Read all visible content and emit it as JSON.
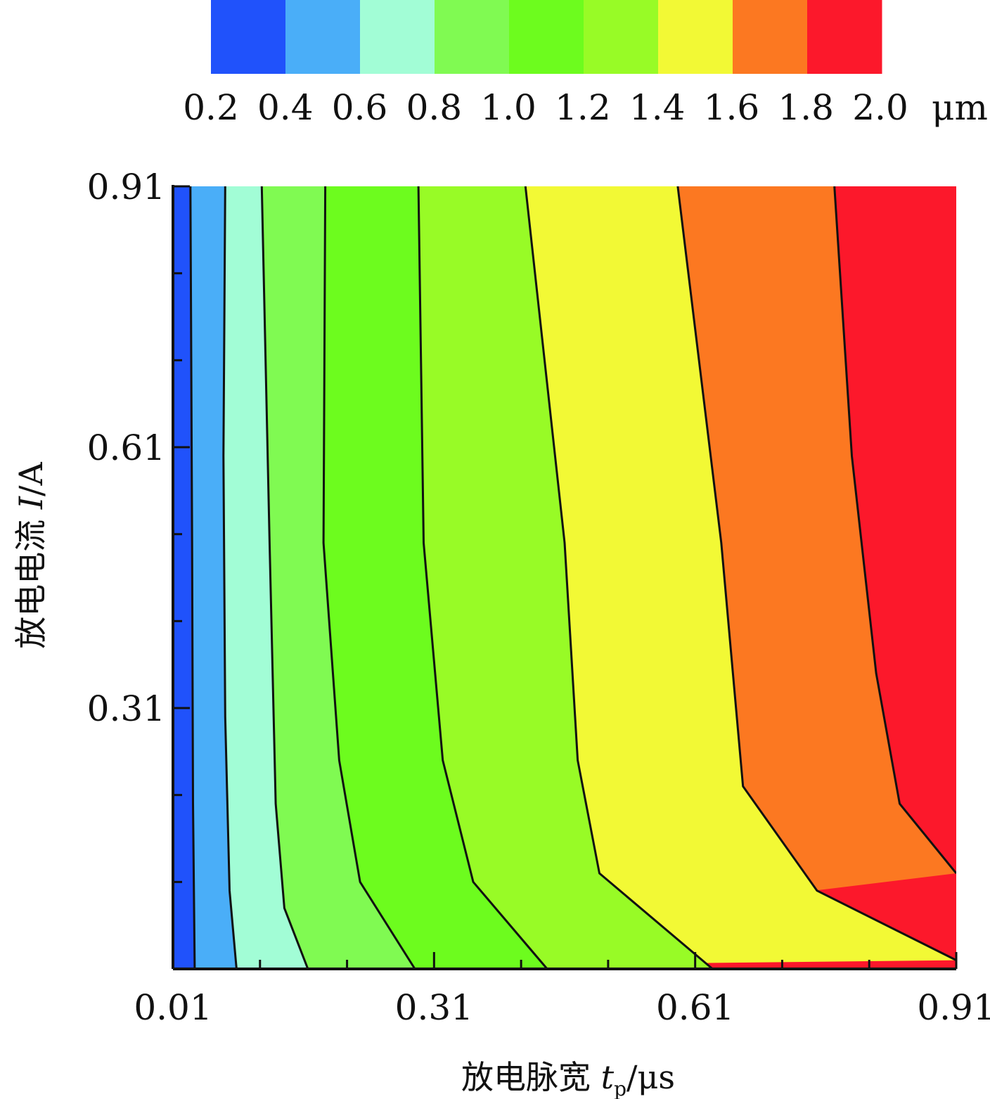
{
  "chart_data": {
    "type": "contour",
    "xlabel_prefix": "放电脉宽 ",
    "xlabel_var": "t",
    "xlabel_sub": "p",
    "xlabel_unit": "/μs",
    "ylabel_prefix": "放电电流 ",
    "ylabel_var": "I",
    "ylabel_unit": "/A",
    "xlim": [
      0.01,
      0.91
    ],
    "ylim": [
      0.01,
      0.91
    ],
    "x_ticks": [
      0.01,
      0.31,
      0.61,
      0.91
    ],
    "x_tick_labels": [
      "0.01",
      "0.31",
      "0.61",
      "0.91"
    ],
    "y_ticks": [
      0.31,
      0.61,
      0.91
    ],
    "y_tick_labels": [
      "0.31",
      "0.61",
      "0.91"
    ],
    "colorbar": {
      "colors": [
        "#2052fb",
        "#4aaef8",
        "#a2fdd6",
        "#80fa52",
        "#6dfc1e",
        "#98fb26",
        "#f2f935",
        "#fc7821",
        "#fc182b"
      ],
      "tick_labels": [
        "0.2",
        "0.4",
        "0.6",
        "0.8",
        "1.0",
        "1.2",
        "1.4",
        "1.6",
        "1.8",
        "2.0"
      ],
      "unit": "μm"
    },
    "contour_levels": [
      {
        "level": 0.2,
        "points": [
          [
            0.035,
            0.01
          ],
          [
            0.033,
            0.2
          ],
          [
            0.032,
            0.5
          ],
          [
            0.03,
            0.91
          ]
        ]
      },
      {
        "level": 0.4,
        "points": [
          [
            0.083,
            0.01
          ],
          [
            0.075,
            0.1
          ],
          [
            0.07,
            0.3
          ],
          [
            0.068,
            0.6
          ],
          [
            0.07,
            0.91
          ]
        ]
      },
      {
        "level": 0.6,
        "points": [
          [
            0.165,
            0.01
          ],
          [
            0.138,
            0.08
          ],
          [
            0.128,
            0.2
          ],
          [
            0.121,
            0.5
          ],
          [
            0.112,
            0.91
          ]
        ]
      },
      {
        "level": 0.8,
        "points": [
          [
            0.288,
            0.01
          ],
          [
            0.225,
            0.11
          ],
          [
            0.201,
            0.25
          ],
          [
            0.183,
            0.5
          ],
          [
            0.185,
            0.91
          ]
        ]
      },
      {
        "level": 1.0,
        "points": [
          [
            0.44,
            0.01
          ],
          [
            0.355,
            0.11
          ],
          [
            0.32,
            0.25
          ],
          [
            0.298,
            0.5
          ],
          [
            0.292,
            0.91
          ]
        ]
      },
      {
        "level": 1.2,
        "points": [
          [
            0.63,
            0.01
          ],
          [
            0.5,
            0.12
          ],
          [
            0.475,
            0.25
          ],
          [
            0.46,
            0.5
          ],
          [
            0.415,
            0.91
          ]
        ]
      },
      {
        "level": 1.4,
        "points": [
          [
            0.91,
            0.02
          ],
          [
            0.75,
            0.1
          ],
          [
            0.665,
            0.22
          ],
          [
            0.64,
            0.5
          ],
          [
            0.59,
            0.91
          ]
        ]
      },
      {
        "level": 1.6,
        "points": [
          [
            0.91,
            0.12
          ],
          [
            0.845,
            0.2
          ],
          [
            0.818,
            0.35
          ],
          [
            0.79,
            0.6
          ],
          [
            0.77,
            0.91
          ]
        ]
      }
    ]
  }
}
